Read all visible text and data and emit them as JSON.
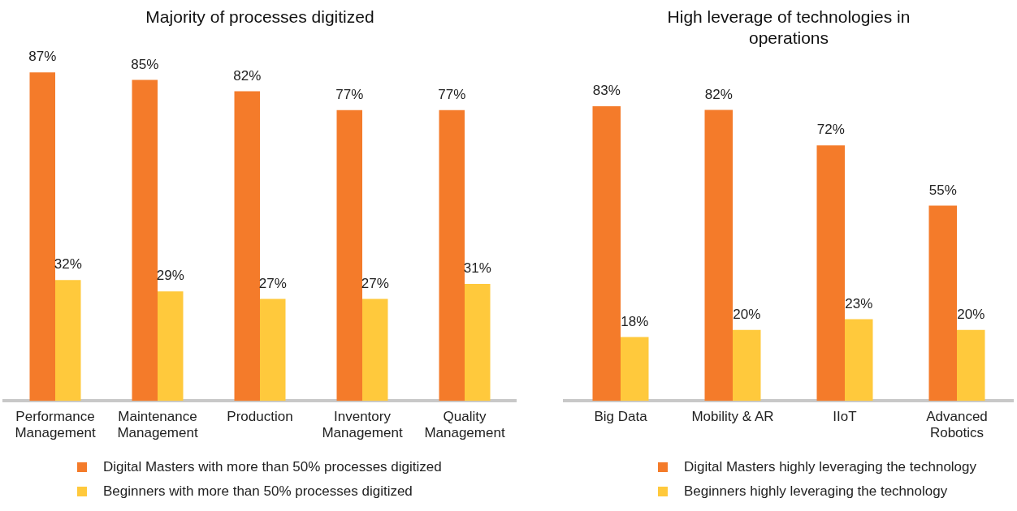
{
  "chart_data": [
    {
      "type": "bar",
      "title": "Majority of processes digitized",
      "categories": [
        "Performance Management",
        "Maintenance Management",
        "Production",
        "Inventory Management",
        "Quality Management"
      ],
      "legend": "bottom",
      "grid": false,
      "series": [
        {
          "name": "Digital Masters with more than 50% processes digitized",
          "color": "#f47b2a",
          "values": [
            87,
            85,
            82,
            77,
            77
          ],
          "value_labels": [
            "87%",
            "85%",
            "82%",
            "77%",
            "77%"
          ]
        },
        {
          "name": "Beginners with more than 50% processes digitized",
          "color": "#ffc93c",
          "values": [
            32,
            29,
            27,
            27,
            31
          ],
          "value_labels": [
            "32%",
            "29%",
            "27%",
            "27%",
            "31%"
          ]
        }
      ]
    },
    {
      "type": "bar",
      "title": "High leverage of technologies in operations",
      "categories": [
        "Big Data",
        "Mobility & AR",
        "IIoT",
        "Advanced Robotics"
      ],
      "legend": "bottom",
      "grid": false,
      "series": [
        {
          "name": "Digital Masters highly leveraging the technology",
          "color": "#f47b2a",
          "values": [
            83,
            82,
            72,
            55
          ],
          "value_labels": [
            "83%",
            "82%",
            "72%",
            "55%"
          ]
        },
        {
          "name": "Beginners highly leveraging the technology",
          "color": "#ffc93c",
          "values": [
            18,
            20,
            23,
            20
          ],
          "value_labels": [
            "18%",
            "20%",
            "23%",
            "20%"
          ]
        }
      ]
    }
  ]
}
